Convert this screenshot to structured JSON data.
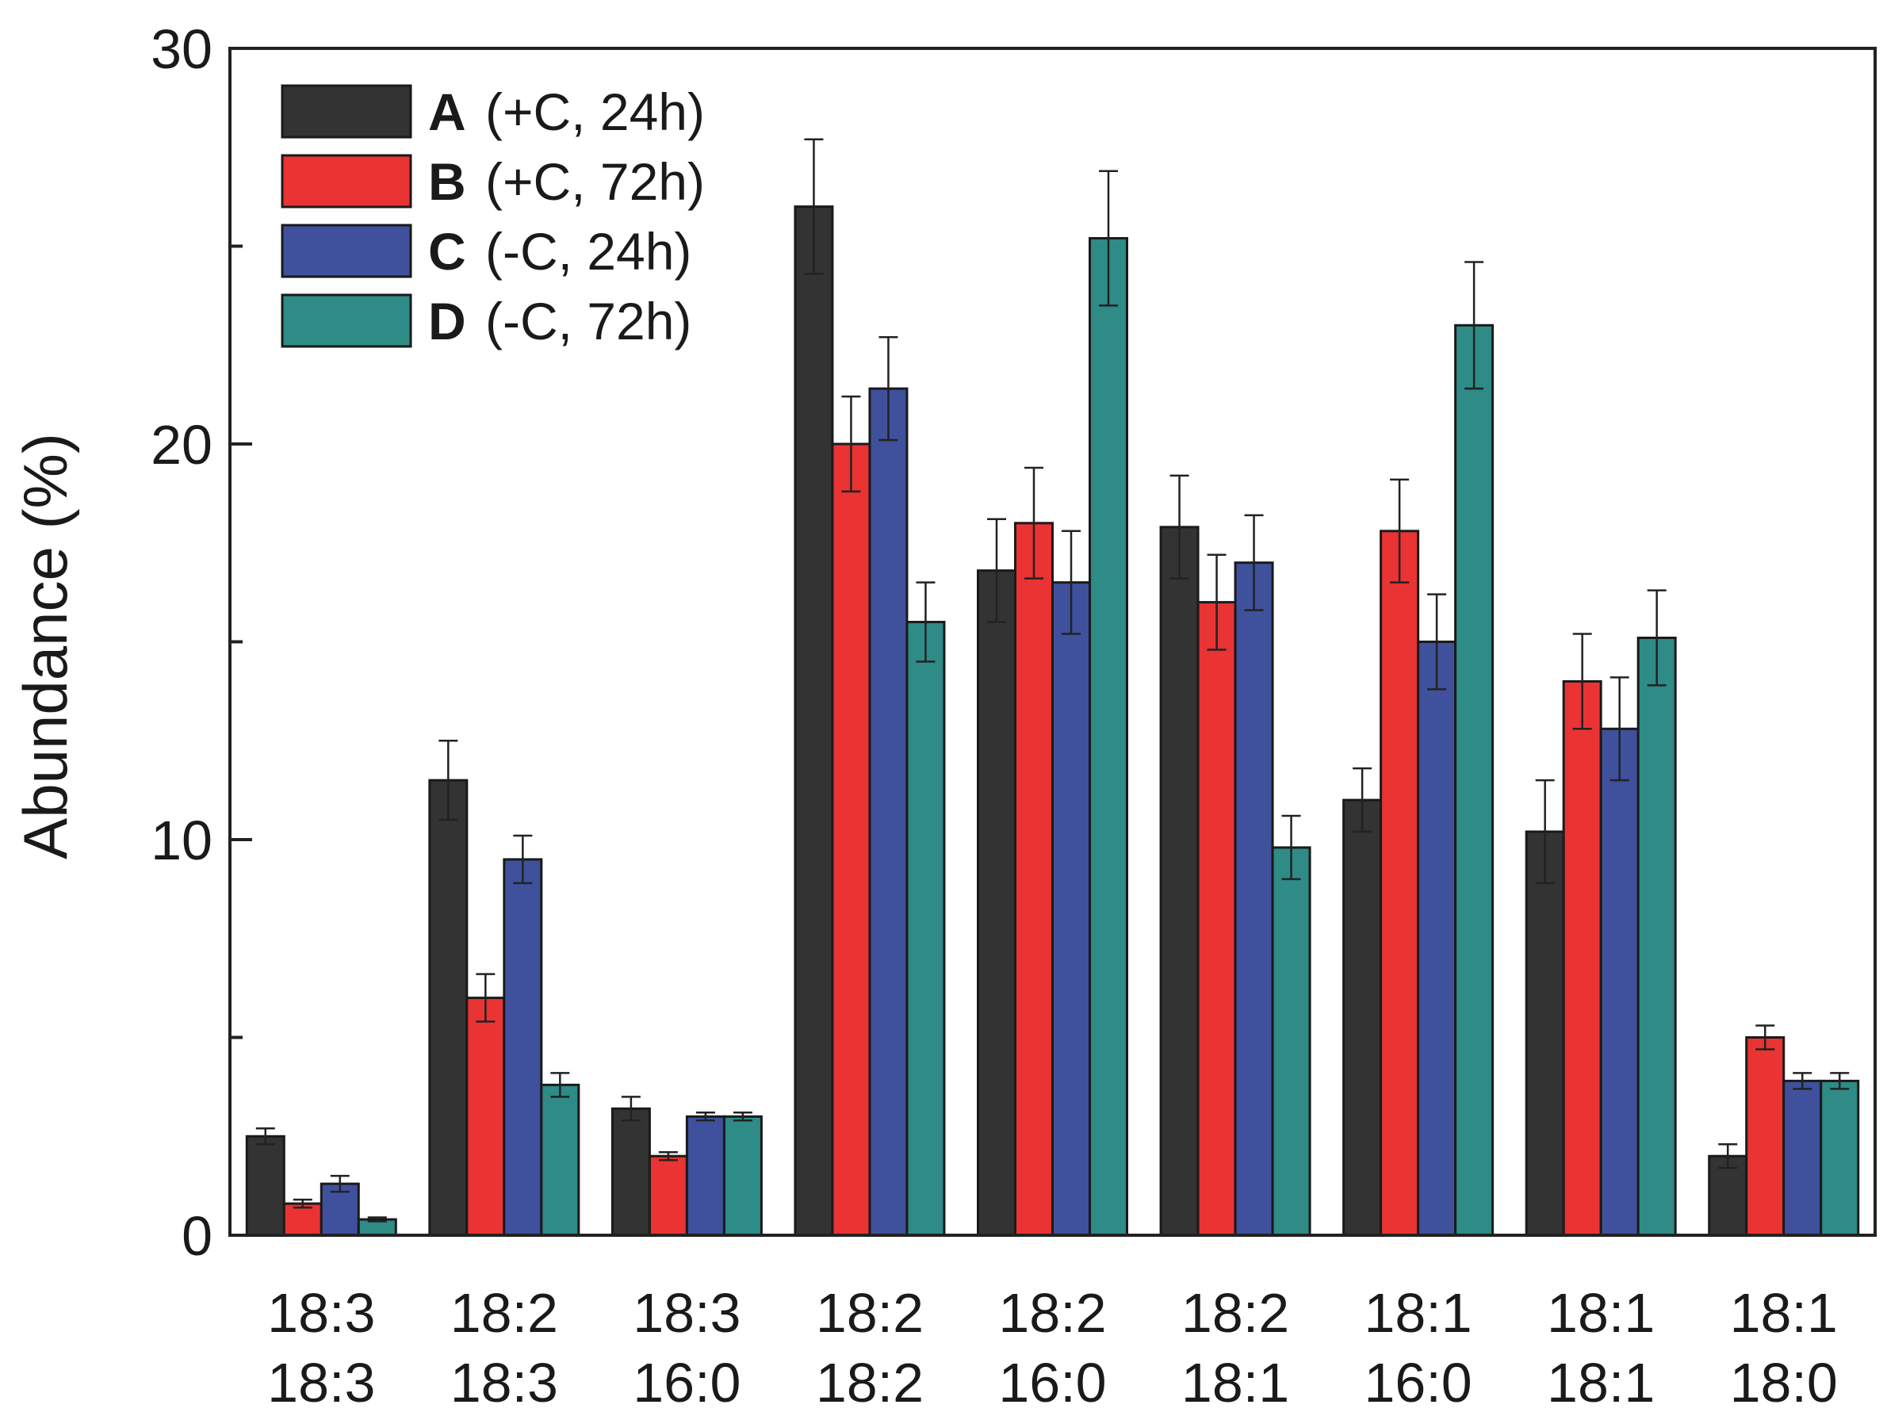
{
  "chart_data": {
    "type": "bar",
    "title": "",
    "xlabel": "",
    "ylabel": "Abundance (%)",
    "ylim": [
      0,
      30
    ],
    "yticks": [
      0,
      10,
      20,
      30
    ],
    "categories": [
      [
        "18:3",
        "18:3"
      ],
      [
        "18:2",
        "18:3"
      ],
      [
        "18:3",
        "16:0"
      ],
      [
        "18:2",
        "18:2"
      ],
      [
        "18:2",
        "16:0"
      ],
      [
        "18:2",
        "18:1"
      ],
      [
        "18:1",
        "16:0"
      ],
      [
        "18:1",
        "18:1"
      ],
      [
        "18:1",
        "18:0"
      ]
    ],
    "legend_position": "top-left",
    "series": [
      {
        "key": "A",
        "desc": "(+C, 24h)",
        "color": "#333333",
        "values": [
          2.5,
          11.5,
          3.2,
          26.0,
          16.8,
          17.9,
          11.0,
          10.2,
          2.0
        ],
        "errors": [
          0.2,
          1.0,
          0.3,
          1.7,
          1.3,
          1.3,
          0.8,
          1.3,
          0.3
        ]
      },
      {
        "key": "B",
        "desc": "(+C, 72h)",
        "color": "#ea3333",
        "values": [
          0.8,
          6.0,
          2.0,
          20.0,
          18.0,
          16.0,
          17.8,
          14.0,
          5.0
        ],
        "errors": [
          0.1,
          0.6,
          0.1,
          1.2,
          1.4,
          1.2,
          1.3,
          1.2,
          0.3
        ]
      },
      {
        "key": "C",
        "desc": "(-C, 24h)",
        "color": "#3f519c",
        "values": [
          1.3,
          9.5,
          3.0,
          21.4,
          16.5,
          17.0,
          15.0,
          12.8,
          3.9
        ],
        "errors": [
          0.2,
          0.6,
          0.1,
          1.3,
          1.3,
          1.2,
          1.2,
          1.3,
          0.2
        ]
      },
      {
        "key": "D",
        "desc": "(-C, 72h)",
        "color": "#2e8b86",
        "values": [
          0.4,
          3.8,
          3.0,
          15.5,
          25.2,
          9.8,
          23.0,
          15.1,
          3.9
        ],
        "errors": [
          0.05,
          0.3,
          0.1,
          1.0,
          1.7,
          0.8,
          1.6,
          1.2,
          0.2
        ]
      }
    ]
  }
}
